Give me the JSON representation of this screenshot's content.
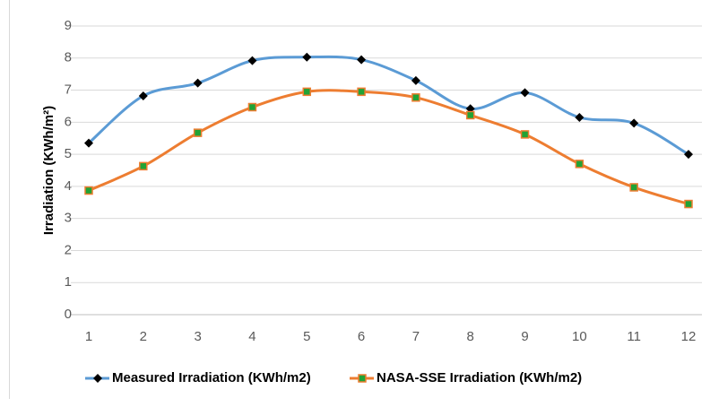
{
  "chart_data": {
    "type": "line",
    "y_label": "Irradiation  (KWh/m²)",
    "x": [
      1,
      2,
      3,
      4,
      5,
      6,
      7,
      8,
      9,
      10,
      11,
      12
    ],
    "series": [
      {
        "name": "Measured Irradiation (KWh/m2)",
        "color": "#5b9bd5",
        "marker": "diamond",
        "marker_color": "#000000",
        "values": [
          5.35,
          6.82,
          7.22,
          7.92,
          8.03,
          7.95,
          7.3,
          6.42,
          6.92,
          6.15,
          5.97,
          5.0
        ]
      },
      {
        "name": "NASA-SSE Irradiation (KWh/m2)",
        "color": "#ed7d31",
        "marker": "square",
        "marker_color": "#21a336",
        "values": [
          3.87,
          4.63,
          5.67,
          6.47,
          6.95,
          6.95,
          6.77,
          6.22,
          5.62,
          4.7,
          3.97,
          3.45
        ]
      }
    ],
    "xlim": [
      1,
      12
    ],
    "xticks": [
      1,
      2,
      3,
      4,
      5,
      6,
      7,
      8,
      9,
      10,
      11,
      12
    ],
    "ylim": [
      0,
      9
    ],
    "yticks": [
      0,
      1,
      2,
      3,
      4,
      5,
      6,
      7,
      8,
      9
    ],
    "grid": true,
    "smooth": true,
    "legend": "bottom"
  }
}
